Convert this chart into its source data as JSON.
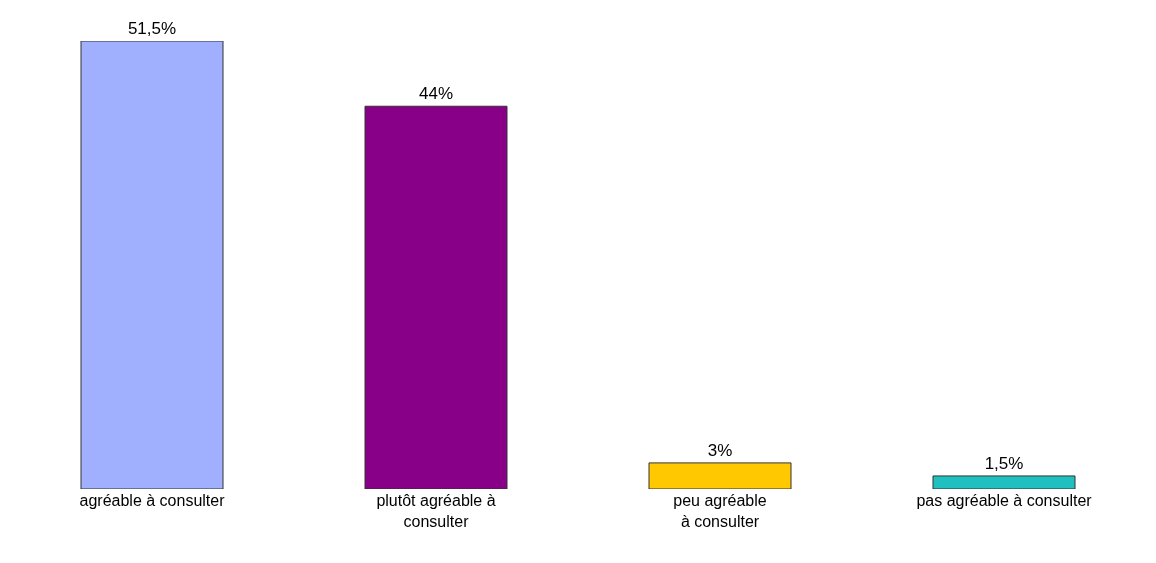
{
  "chart_data": {
    "type": "bar",
    "categories": [
      "agréable à consulter",
      "plutôt agréable à\nconsulter",
      "peu agréable\nà consulter",
      "pas agréable à consulter"
    ],
    "values": [
      51.5,
      44,
      3,
      1.5
    ],
    "colors": [
      "#a0b0ff",
      "#880088",
      "#ffc800",
      "#20c0c0"
    ],
    "value_labels": [
      "51,5%",
      "44%",
      "3%",
      "1,5%"
    ],
    "ylim": [
      0,
      51.5
    ],
    "tick_labels": "x",
    "legend": false
  }
}
